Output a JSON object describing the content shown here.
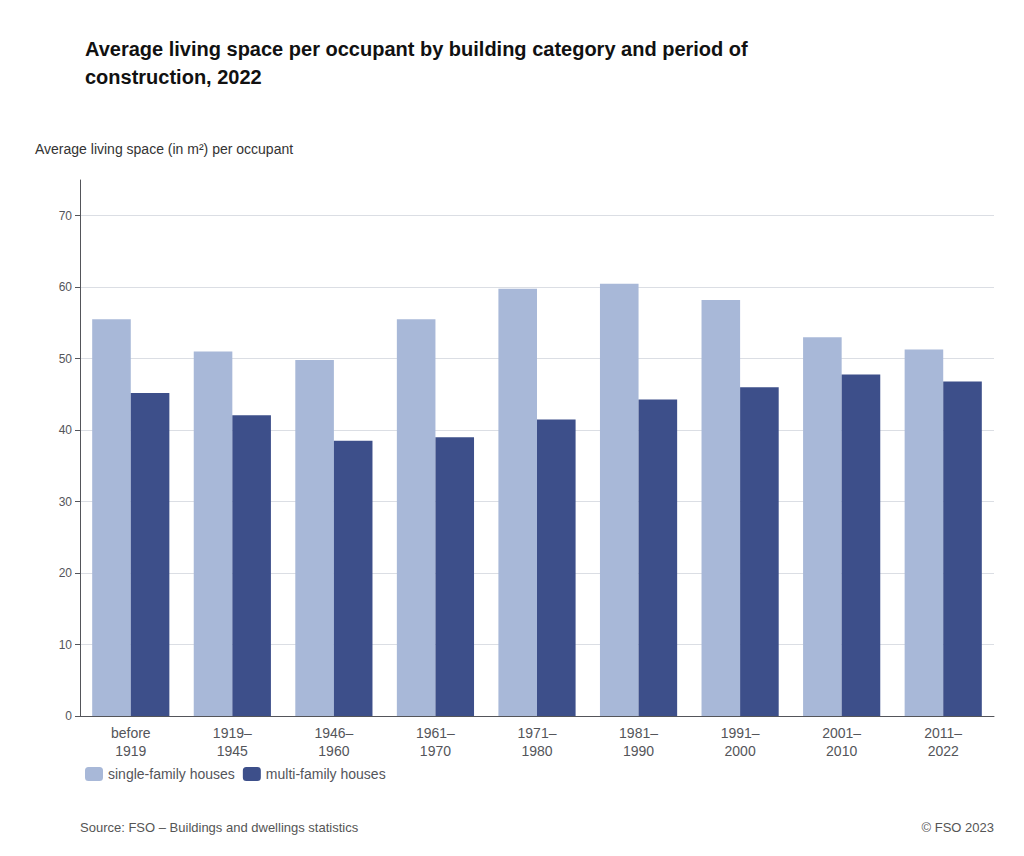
{
  "chart_data": {
    "type": "bar",
    "title": "Average living space per occupant by building category and period of\nconstruction, 2022",
    "ylabel": "Average living space (in m²) per occupant",
    "categories": [
      "before\n1919",
      "1919–\n1945",
      "1946–\n1960",
      "1961–\n1970",
      "1971–\n1980",
      "1981–\n1990",
      "1991–\n2000",
      "2001–\n2010",
      "2011–\n2022"
    ],
    "series": [
      {
        "name": "single-family houses",
        "color": "#a8b8d8",
        "values": [
          55.5,
          51.0,
          49.8,
          55.5,
          59.8,
          60.5,
          58.2,
          53.0,
          51.3
        ]
      },
      {
        "name": "multi-family houses",
        "color": "#3d4f8a",
        "values": [
          45.2,
          42.1,
          38.5,
          39.0,
          41.5,
          44.3,
          46.0,
          47.8,
          46.8
        ]
      }
    ],
    "ylim": [
      0,
      75
    ],
    "yticks": [
      0,
      10,
      20,
      30,
      40,
      50,
      60,
      70
    ],
    "grid": true,
    "legend": "lower left",
    "annotations": [
      "Source: FSO – Buildings and dwellings statistics",
      "© FSO 2023"
    ]
  }
}
